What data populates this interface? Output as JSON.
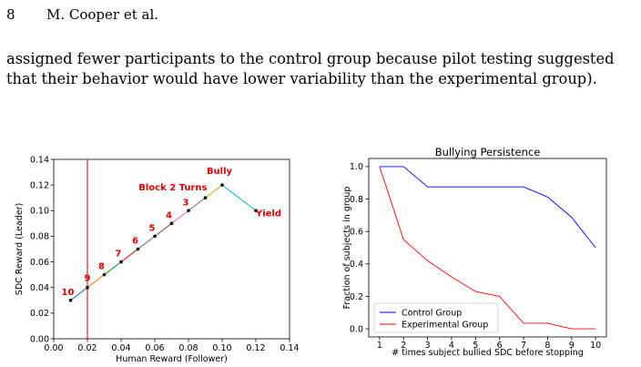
{
  "header": {
    "page_number": "8",
    "running_title": "M. Cooper et al."
  },
  "paragraph": {
    "lines": [
      "assigned fewer participants to the control group because pilot testing suggested",
      "that their behavior would have lower variability than the experimental group)."
    ]
  },
  "chart_data": [
    {
      "type": "line",
      "title": "",
      "xlabel": "Human Reward (Follower)",
      "ylabel": "SDC Reward (Leader)",
      "xlim": [
        0.0,
        0.14
      ],
      "ylim": [
        0.0,
        0.14
      ],
      "xticks": [
        "0.00",
        "0.02",
        "0.04",
        "0.06",
        "0.08",
        "0.10",
        "0.12",
        "0.14"
      ],
      "yticks": [
        "0.00",
        "0.02",
        "0.04",
        "0.06",
        "0.08",
        "0.10",
        "0.12",
        "0.14"
      ],
      "grid": false,
      "vline": {
        "x": 0.02,
        "color": "#d62728"
      },
      "points": [
        {
          "x": 0.01,
          "y": 0.03,
          "label": "10"
        },
        {
          "x": 0.02,
          "y": 0.04,
          "label": "9"
        },
        {
          "x": 0.03,
          "y": 0.05,
          "label": "8"
        },
        {
          "x": 0.04,
          "y": 0.06,
          "label": "7"
        },
        {
          "x": 0.05,
          "y": 0.07,
          "label": "6"
        },
        {
          "x": 0.06,
          "y": 0.08,
          "label": "5"
        },
        {
          "x": 0.07,
          "y": 0.09,
          "label": "4"
        },
        {
          "x": 0.08,
          "y": 0.1,
          "label": "3"
        },
        {
          "x": 0.09,
          "y": 0.11,
          "label": "Block 2 Turns"
        },
        {
          "x": 0.1,
          "y": 0.12,
          "label": "Bully"
        },
        {
          "x": 0.12,
          "y": 0.1,
          "label": "Yield"
        }
      ],
      "segment_colors": [
        "#1f77b4",
        "#ff7f0e",
        "#2ca02c",
        "#d62728",
        "#9467bd",
        "#8c564b",
        "#e377c2",
        "#7f7f7f",
        "#bcbd22",
        "#17becf"
      ],
      "label_color": "#e00000"
    },
    {
      "type": "line",
      "title": "Bullying Persistence",
      "xlabel": "# times subject bullied SDC before stopping",
      "ylabel": "Fraction of subjects in group",
      "x": [
        1,
        2,
        3,
        4,
        5,
        6,
        7,
        8,
        9,
        10
      ],
      "xticks": [
        "1",
        "2",
        "3",
        "4",
        "5",
        "6",
        "7",
        "8",
        "9",
        "10"
      ],
      "yticks": [
        "0.0",
        "0.2",
        "0.4",
        "0.6",
        "0.8",
        "1.0"
      ],
      "xlim": [
        0.55,
        10.45
      ],
      "ylim": [
        -0.05,
        1.05
      ],
      "grid": false,
      "legend_position": "bottom-left",
      "series": [
        {
          "name": "Control Group",
          "color": "#0000ff",
          "values": [
            1.0,
            1.0,
            0.875,
            0.875,
            0.875,
            0.875,
            0.875,
            0.8125,
            0.6875,
            0.5
          ]
        },
        {
          "name": "Experimental Group",
          "color": "#ff0000",
          "values": [
            1.0,
            0.55,
            0.42,
            0.32,
            0.23,
            0.2,
            0.035,
            0.035,
            0.0,
            0.0
          ]
        }
      ]
    }
  ]
}
